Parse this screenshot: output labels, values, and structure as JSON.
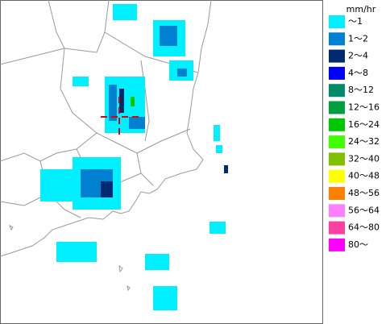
{
  "legend": {
    "title": "mm/hr",
    "items": [
      {
        "label": "～1",
        "color": "#00f0ff"
      },
      {
        "label": "1～2",
        "color": "#0080d0"
      },
      {
        "label": "2～4",
        "color": "#002a70"
      },
      {
        "label": "4～8",
        "color": "#0000ff"
      },
      {
        "label": "8～12",
        "color": "#008a6a"
      },
      {
        "label": "12～16",
        "color": "#00a040"
      },
      {
        "label": "16～24",
        "color": "#00c800"
      },
      {
        "label": "24～32",
        "color": "#40ff00"
      },
      {
        "label": "32～40",
        "color": "#80c000"
      },
      {
        "label": "40～48",
        "color": "#ffff00"
      },
      {
        "label": "48～56",
        "color": "#ff8000"
      },
      {
        "label": "56～64",
        "color": "#ff80ff"
      },
      {
        "label": "64～80",
        "color": "#ff40a0"
      },
      {
        "label": "80～",
        "color": "#ff00ff"
      }
    ]
  }
}
